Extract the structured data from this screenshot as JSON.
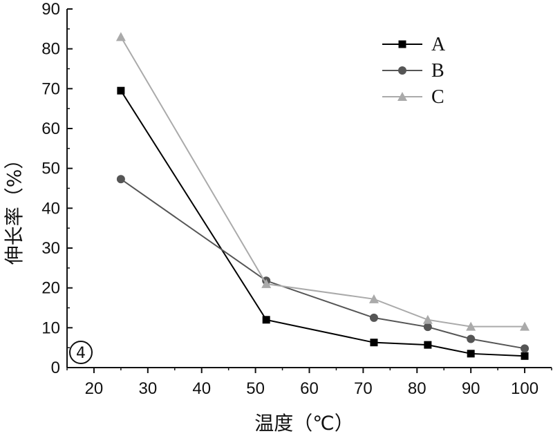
{
  "chart_data": {
    "type": "line",
    "title": "",
    "xlabel": "温度（℃）",
    "ylabel": "伸长率（%）",
    "xlim": [
      15,
      105
    ],
    "ylim": [
      0,
      90
    ],
    "xticks": [
      20,
      30,
      40,
      50,
      60,
      70,
      80,
      90,
      100
    ],
    "yticks": [
      0,
      10,
      20,
      30,
      40,
      50,
      60,
      70,
      80,
      90
    ],
    "x": [
      25,
      52,
      72,
      82,
      90,
      100
    ],
    "series": [
      {
        "name": "A",
        "values": [
          69.5,
          12.0,
          6.3,
          5.7,
          3.5,
          2.9
        ],
        "color": "#000000",
        "marker": "square"
      },
      {
        "name": "B",
        "values": [
          47.3,
          21.8,
          12.5,
          10.2,
          7.2,
          4.8
        ],
        "color": "#555555",
        "marker": "circle"
      },
      {
        "name": "C",
        "values": [
          83.0,
          21.0,
          17.2,
          12.0,
          10.3,
          10.3
        ],
        "color": "#aaaaaa",
        "marker": "triangle"
      }
    ],
    "legend_position": "top-right",
    "grid": false,
    "panel_label": "4"
  }
}
